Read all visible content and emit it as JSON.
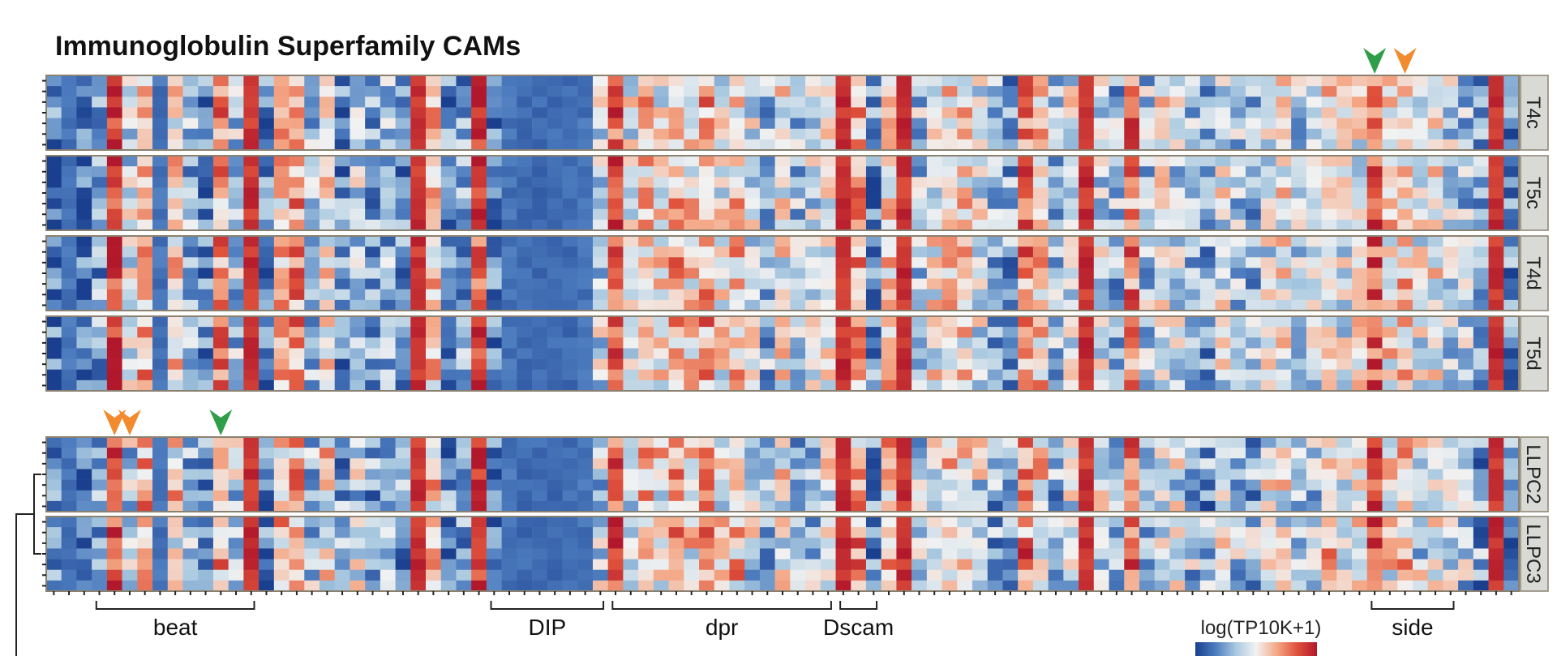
{
  "chart_data": {
    "type": "heatmap",
    "title": "Immunoglobulin Superfamily CAMs",
    "colorbar_label": "log(TP10K+1)",
    "color_scale": [
      "#1a3f8f",
      "#4d7cbf",
      "#a9c9e0",
      "#f2f2f2",
      "#f4a988",
      "#e0533c",
      "#b2182b"
    ],
    "n_genes": 97,
    "rows_per_panel": 7,
    "panels_top": [
      "T4c",
      "T5c",
      "T4d",
      "T5d"
    ],
    "panels_bottom": [
      "LLPC2",
      "LLPC3"
    ],
    "gene_groups": [
      {
        "label": "beat",
        "start": 3,
        "end": 13
      },
      {
        "label": "DIP",
        "start": 29,
        "end": 36
      },
      {
        "label": "dpr",
        "start": 37,
        "end": 51
      },
      {
        "label": "Dscam",
        "start": 52,
        "end": 54
      },
      {
        "label": "side",
        "start": 87,
        "end": 92
      }
    ],
    "column_levels": [
      0.15,
      0.1,
      0.12,
      0.25,
      0.9,
      0.4,
      0.65,
      0.1,
      0.55,
      0.3,
      0.2,
      0.7,
      0.35,
      0.95,
      0.15,
      0.6,
      0.7,
      0.3,
      0.5,
      0.2,
      0.4,
      0.25,
      0.3,
      0.2,
      0.98,
      0.6,
      0.2,
      0.25,
      0.88,
      0.15,
      0.1,
      0.08,
      0.08,
      0.08,
      0.08,
      0.1,
      0.4,
      0.85,
      0.45,
      0.6,
      0.5,
      0.65,
      0.55,
      0.7,
      0.5,
      0.6,
      0.45,
      0.3,
      0.5,
      0.35,
      0.4,
      0.45,
      0.98,
      0.7,
      0.2,
      0.6,
      0.95,
      0.35,
      0.5,
      0.6,
      0.55,
      0.45,
      0.3,
      0.25,
      0.75,
      0.6,
      0.3,
      0.45,
      0.95,
      0.4,
      0.3,
      0.75,
      0.35,
      0.5,
      0.4,
      0.3,
      0.25,
      0.45,
      0.35,
      0.3,
      0.45,
      0.5,
      0.35,
      0.4,
      0.55,
      0.45,
      0.5,
      0.85,
      0.55,
      0.6,
      0.45,
      0.5,
      0.4,
      0.35,
      0.25,
      0.95,
      0.2
    ],
    "arrowheads": [
      {
        "panel": "T4c",
        "gene_col": 87,
        "color": "#2e9e48"
      },
      {
        "panel": "T4c",
        "gene_col": 89,
        "color": "#f28a2e"
      },
      {
        "panel": "LLPC2",
        "gene_col": 4,
        "color": "#f28a2e"
      },
      {
        "panel": "LLPC2",
        "gene_col": 5,
        "color": "#f28a2e"
      },
      {
        "panel": "LLPC2",
        "gene_col": 11,
        "color": "#2e9e48"
      }
    ]
  }
}
